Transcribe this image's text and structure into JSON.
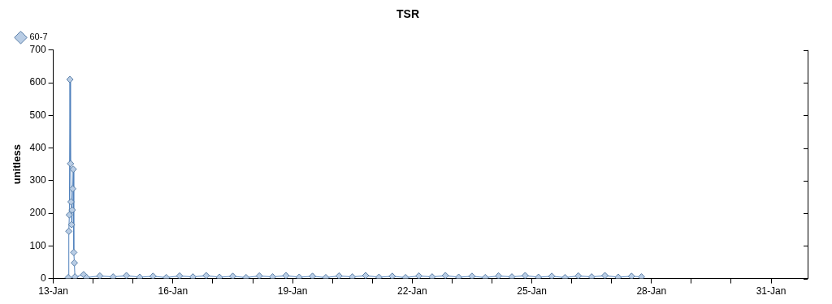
{
  "chart_data": {
    "type": "line",
    "title": "TSR",
    "ylabel": "unitless",
    "legend": "top left",
    "marker": "diamond",
    "grid": false,
    "xlim": [
      "--01-13T00:00",
      "--01-31T22:00"
    ],
    "xticks": [
      {
        "value": "--01-13",
        "label": "13-Jan"
      },
      {
        "value": "--01-14",
        "label": null
      },
      {
        "value": "--01-15",
        "label": null
      },
      {
        "value": "--01-16",
        "label": "16-Jan"
      },
      {
        "value": "--01-17",
        "label": null
      },
      {
        "value": "--01-18",
        "label": null
      },
      {
        "value": "--01-19",
        "label": "19-Jan"
      },
      {
        "value": "--01-20",
        "label": null
      },
      {
        "value": "--01-21",
        "label": null
      },
      {
        "value": "--01-22",
        "label": "22-Jan"
      },
      {
        "value": "--01-23",
        "label": null
      },
      {
        "value": "--01-24",
        "label": null
      },
      {
        "value": "--01-25",
        "label": "25-Jan"
      },
      {
        "value": "--01-26",
        "label": null
      },
      {
        "value": "--01-27",
        "label": null
      },
      {
        "value": "--01-28",
        "label": "28-Jan"
      },
      {
        "value": "--01-29",
        "label": null
      },
      {
        "value": "--01-30",
        "label": null
      },
      {
        "value": "--01-31",
        "label": "31-Jan"
      }
    ],
    "ylim": [
      0,
      700
    ],
    "yticks": [
      0,
      100,
      200,
      300,
      400,
      500,
      600,
      700
    ],
    "series": [
      {
        "name": "60-7",
        "color": "#4f81bd",
        "x": [
          "--01-13T09:00",
          "--01-13T09:20",
          "--01-13T09:40",
          "--01-13T10:00",
          "--01-13T10:20",
          "--01-13T10:40",
          "--01-13T11:00",
          "--01-13T11:20",
          "--01-13T11:40",
          "--01-13T12:00",
          "--01-13T12:20",
          "--01-13T12:40",
          "--01-13T13:00",
          "--01-13T18:15",
          "--01-13T20:00",
          "--01-14T04:00",
          "--01-14T12:00",
          "--01-14T20:00",
          "--01-15T04:00",
          "--01-15T12:00",
          "--01-15T20:00",
          "--01-16T04:00",
          "--01-16T12:00",
          "--01-16T20:00",
          "--01-17T04:00",
          "--01-17T12:00",
          "--01-17T20:00",
          "--01-18T04:00",
          "--01-18T12:00",
          "--01-18T20:00",
          "--01-19T04:00",
          "--01-19T12:00",
          "--01-19T20:00",
          "--01-20T04:00",
          "--01-20T12:00",
          "--01-20T20:00",
          "--01-21T04:00",
          "--01-21T12:00",
          "--01-21T20:00",
          "--01-22T04:00",
          "--01-22T12:00",
          "--01-22T20:00",
          "--01-23T04:00",
          "--01-23T12:00",
          "--01-23T20:00",
          "--01-24T04:00",
          "--01-24T12:00",
          "--01-24T20:00",
          "--01-25T04:00",
          "--01-25T12:00",
          "--01-25T20:00",
          "--01-26T04:00",
          "--01-26T12:00",
          "--01-26T20:00",
          "--01-27T04:00",
          "--01-27T12:00",
          "--01-27T18:00"
        ],
        "values": [
          3,
          145,
          195,
          610,
          352,
          235,
          165,
          210,
          275,
          335,
          80,
          48,
          5,
          12,
          3,
          8,
          5,
          9,
          4,
          7,
          3,
          8,
          5,
          9,
          4,
          7,
          3,
          8,
          5,
          9,
          4,
          7,
          3,
          8,
          5,
          9,
          4,
          7,
          3,
          8,
          5,
          9,
          4,
          7,
          3,
          8,
          5,
          9,
          4,
          7,
          3,
          8,
          5,
          9,
          4,
          7,
          5
        ]
      }
    ]
  }
}
